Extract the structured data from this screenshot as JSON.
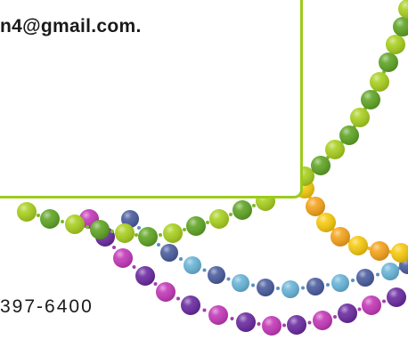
{
  "contact": {
    "email_visible": "n4@gmail.com.",
    "phone_visible": "397-6400"
  },
  "colors": {
    "card_border": "#9ccb1a",
    "text": "#1a1a1a",
    "bead_lime": "#a8cf1e",
    "bead_green": "#5fa424",
    "bead_yellow": "#f6c90e",
    "bead_orange": "#f4a21b",
    "bead_blue": "#69b4d8",
    "bead_navy": "#4a5c9e",
    "bead_purple": "#6a2aa0",
    "bead_magenta": "#c338b8"
  },
  "decoration": {
    "name": "mardi-gras-bead-strands",
    "strands": [
      "green-lime",
      "yellow-orange",
      "blue-navy",
      "purple-magenta"
    ]
  }
}
